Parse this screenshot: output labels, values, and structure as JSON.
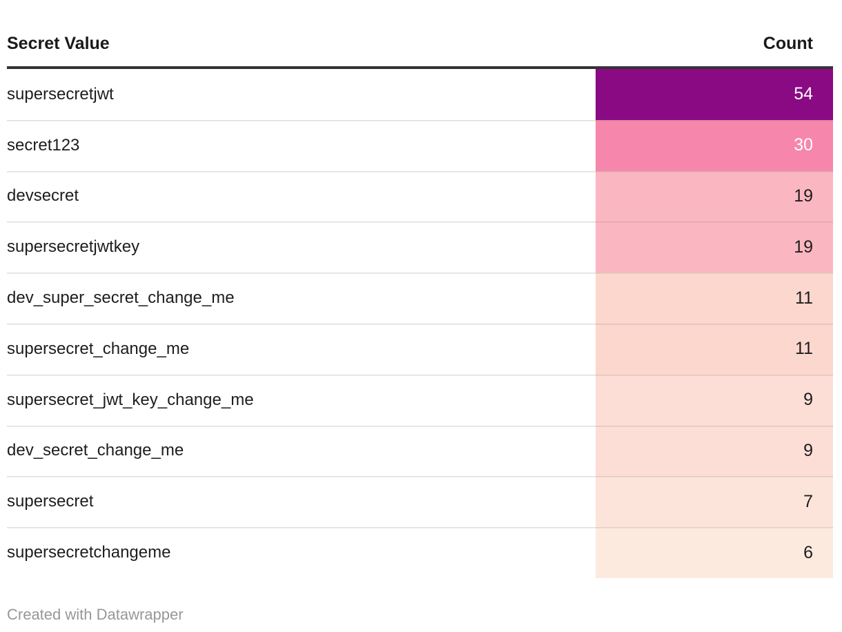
{
  "table": {
    "columns": {
      "secret": "Secret Value",
      "count": "Count"
    },
    "rows": [
      {
        "label": "supersecretjwt",
        "count": "54",
        "bar_color": "#8A0A84",
        "value_color": "#ffffff"
      },
      {
        "label": "secret123",
        "count": "30",
        "bar_color": "#F786AD",
        "value_color": "#ffffff"
      },
      {
        "label": "devsecret",
        "count": "19",
        "bar_color": "#FBB7C1",
        "value_color": "#1d1d1d"
      },
      {
        "label": "supersecretjwtkey",
        "count": "19",
        "bar_color": "#FBB7C1",
        "value_color": "#1d1d1d"
      },
      {
        "label": "dev_super_secret_change_me",
        "count": "11",
        "bar_color": "#FCD7CE",
        "value_color": "#1d1d1d"
      },
      {
        "label": "supersecret_change_me",
        "count": "11",
        "bar_color": "#FCD7CE",
        "value_color": "#1d1d1d"
      },
      {
        "label": "supersecret_jwt_key_change_me",
        "count": "9",
        "bar_color": "#FCDED6",
        "value_color": "#1d1d1d"
      },
      {
        "label": "dev_secret_change_me",
        "count": "9",
        "bar_color": "#FCDED6",
        "value_color": "#1d1d1d"
      },
      {
        "label": "supersecret",
        "count": "7",
        "bar_color": "#FDE4DA",
        "value_color": "#1d1d1d"
      },
      {
        "label": "supersecretchangeme",
        "count": "6",
        "bar_color": "#FDEADF",
        "value_color": "#1d1d1d"
      }
    ]
  },
  "footer": {
    "credit": "Created with Datawrapper"
  },
  "styles": {
    "header_rule_color": "#333333",
    "row_divider_color": "#E8D9D4",
    "label_color": "#1d1d1d",
    "credit_color": "#979797",
    "background": "#ffffff"
  },
  "chart_data": {
    "type": "table",
    "columns": [
      "Secret Value",
      "Count"
    ],
    "categories": [
      "supersecretjwt",
      "secret123",
      "devsecret",
      "supersecretjwtkey",
      "dev_super_secret_change_me",
      "supersecret_change_me",
      "supersecret_jwt_key_change_me",
      "dev_secret_change_me",
      "supersecret",
      "supersecretchangeme"
    ],
    "values": [
      54,
      30,
      19,
      19,
      11,
      11,
      9,
      9,
      7,
      6
    ],
    "title": "",
    "xlabel": "Secret Value",
    "ylabel": "Count",
    "value_range": [
      6,
      54
    ],
    "color_encoding": "Count column cells shaded on a sequential purple-pink-peach heatmap scale (dark purple = high, pale peach = low)",
    "legend_position": "none",
    "grid": false,
    "credit": "Created with Datawrapper"
  }
}
